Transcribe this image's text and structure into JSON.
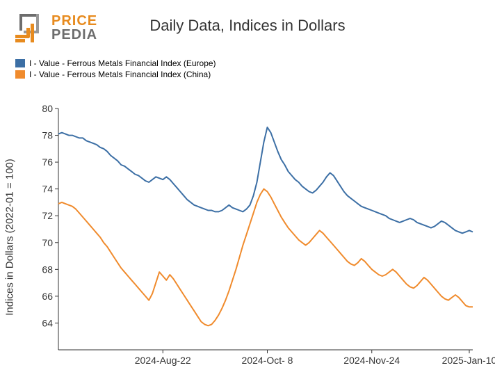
{
  "logo": {
    "brand_top": "PRICE",
    "brand_bottom": "PEDIA",
    "orange": "#e78b1f",
    "grey": "#6d6d6d"
  },
  "chart": {
    "type": "line",
    "title": "Daily Data, Indices in Dollars",
    "title_fontsize": 22,
    "title_color": "#333333",
    "y_axis_label": "Indices in Dollars (2022-01 = 100)",
    "y_axis_label_fontsize": 15,
    "axis_color": "#333333",
    "tick_fontsize": 14,
    "background_color": "#ffffff",
    "line_width": 2,
    "ylim": [
      62,
      80
    ],
    "ytick_step": 2,
    "yticks": [
      64,
      66,
      68,
      70,
      72,
      74,
      76,
      78,
      80
    ],
    "x_count": 120,
    "x_tick_positions": [
      30,
      60,
      90,
      118
    ],
    "x_tick_labels": [
      "2024-Aug-22",
      "2024-Oct- 8",
      "2024-Nov-24",
      "2025-Jan-10"
    ],
    "series": [
      {
        "name": "I - Value - Ferrous Metals Financial Index (Europe)",
        "color": "#3c6fa5",
        "values": [
          78.1,
          78.2,
          78.1,
          78.0,
          78.0,
          77.9,
          77.8,
          77.8,
          77.6,
          77.5,
          77.4,
          77.3,
          77.1,
          77.0,
          76.8,
          76.5,
          76.3,
          76.1,
          75.8,
          75.7,
          75.5,
          75.3,
          75.1,
          75.0,
          74.8,
          74.6,
          74.5,
          74.7,
          74.9,
          74.8,
          74.7,
          74.9,
          74.7,
          74.4,
          74.1,
          73.8,
          73.5,
          73.2,
          73.0,
          72.8,
          72.7,
          72.6,
          72.5,
          72.4,
          72.4,
          72.3,
          72.3,
          72.4,
          72.6,
          72.8,
          72.6,
          72.5,
          72.4,
          72.3,
          72.5,
          72.8,
          73.5,
          74.5,
          76.0,
          77.5,
          78.6,
          78.2,
          77.5,
          76.8,
          76.2,
          75.8,
          75.3,
          75.0,
          74.7,
          74.5,
          74.2,
          74.0,
          73.8,
          73.7,
          73.9,
          74.2,
          74.5,
          74.9,
          75.2,
          75.0,
          74.6,
          74.2,
          73.8,
          73.5,
          73.3,
          73.1,
          72.9,
          72.7,
          72.6,
          72.5,
          72.4,
          72.3,
          72.2,
          72.1,
          72.0,
          71.8,
          71.7,
          71.6,
          71.5,
          71.6,
          71.7,
          71.8,
          71.7,
          71.5,
          71.4,
          71.3,
          71.2,
          71.1,
          71.2,
          71.4,
          71.6,
          71.5,
          71.3,
          71.1,
          70.9,
          70.8,
          70.7,
          70.8,
          70.9,
          70.8
        ]
      },
      {
        "name": "I - Value - Ferrous Metals Financial Index (China)",
        "color": "#f08b2d",
        "values": [
          72.9,
          73.0,
          72.9,
          72.8,
          72.7,
          72.5,
          72.2,
          71.9,
          71.6,
          71.3,
          71.0,
          70.7,
          70.4,
          70.0,
          69.7,
          69.3,
          68.9,
          68.5,
          68.1,
          67.8,
          67.5,
          67.2,
          66.9,
          66.6,
          66.3,
          66.0,
          65.7,
          66.2,
          67.0,
          67.8,
          67.5,
          67.2,
          67.6,
          67.3,
          66.9,
          66.5,
          66.1,
          65.7,
          65.3,
          64.9,
          64.5,
          64.1,
          63.9,
          63.8,
          63.9,
          64.2,
          64.6,
          65.1,
          65.7,
          66.4,
          67.2,
          68.0,
          68.9,
          69.8,
          70.6,
          71.4,
          72.2,
          73.0,
          73.6,
          74.0,
          73.8,
          73.4,
          72.9,
          72.4,
          71.9,
          71.5,
          71.1,
          70.8,
          70.5,
          70.2,
          70.0,
          69.8,
          70.0,
          70.3,
          70.6,
          70.9,
          70.7,
          70.4,
          70.1,
          69.8,
          69.5,
          69.2,
          68.9,
          68.6,
          68.4,
          68.3,
          68.5,
          68.8,
          68.6,
          68.3,
          68.0,
          67.8,
          67.6,
          67.5,
          67.6,
          67.8,
          68.0,
          67.8,
          67.5,
          67.2,
          66.9,
          66.7,
          66.6,
          66.8,
          67.1,
          67.4,
          67.2,
          66.9,
          66.6,
          66.3,
          66.0,
          65.8,
          65.7,
          65.9,
          66.1,
          65.9,
          65.6,
          65.3,
          65.2,
          65.2
        ]
      }
    ]
  }
}
